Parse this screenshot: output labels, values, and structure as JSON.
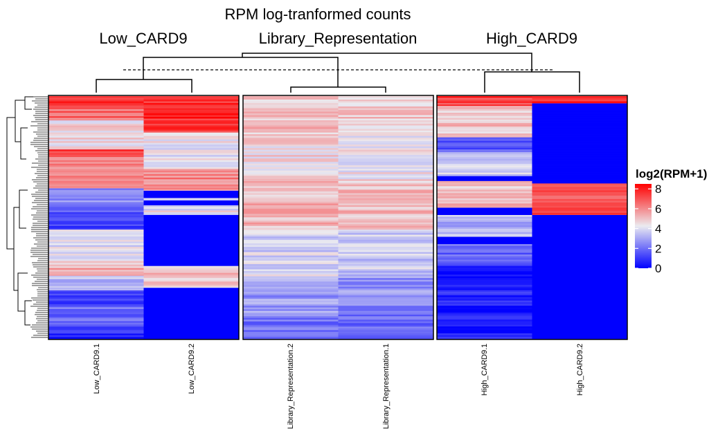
{
  "chart_data": {
    "type": "heatmap",
    "title": "RPM log-tranformed counts",
    "column_groups": [
      {
        "label": "Low_CARD9",
        "columns": [
          "Low_CARD9.1",
          "Low_CARD9.2"
        ]
      },
      {
        "label": "Library_Representation",
        "columns": [
          "Library_Representation.2",
          "Library_Representation.1"
        ]
      },
      {
        "label": "High_CARD9",
        "columns": [
          "High_CARD9.1",
          "High_CARD9.2"
        ]
      }
    ],
    "legend": {
      "title": "log2(RPM+1)",
      "ticks": [
        0,
        2,
        4,
        6,
        8
      ],
      "range": [
        0,
        8.5
      ],
      "colors": {
        "low": "#0000ff",
        "mid": "#ebebf0",
        "high": "#ff0000"
      }
    },
    "row_dendrogram": true,
    "column_dendrogram": true,
    "segments": {
      "Low_CARD9.1": [
        [
          0.0,
          0.04,
          7.4
        ],
        [
          0.04,
          0.1,
          6.5
        ],
        [
          0.1,
          0.22,
          4.6
        ],
        [
          0.22,
          0.24,
          2.4
        ],
        [
          0.22,
          0.25,
          7.6
        ],
        [
          0.25,
          0.38,
          6.0
        ],
        [
          0.38,
          0.45,
          2.7
        ],
        [
          0.45,
          0.55,
          1.4
        ],
        [
          0.55,
          0.68,
          4.1
        ],
        [
          0.68,
          0.74,
          5.3
        ],
        [
          0.74,
          0.8,
          3.2
        ],
        [
          0.8,
          0.87,
          0.9
        ],
        [
          0.87,
          0.95,
          2.0
        ],
        [
          0.95,
          1.0,
          0.7
        ]
      ],
      "Low_CARD9.2": [
        [
          0.0,
          0.15,
          7.7
        ],
        [
          0.15,
          0.3,
          4.3
        ],
        [
          0.3,
          0.39,
          6.0
        ],
        [
          0.39,
          0.42,
          0.0
        ],
        [
          0.42,
          0.43,
          4.6
        ],
        [
          0.43,
          0.45,
          0.0
        ],
        [
          0.45,
          0.49,
          4.2
        ],
        [
          0.49,
          0.7,
          0.0
        ],
        [
          0.7,
          0.79,
          4.9
        ],
        [
          0.79,
          1.0,
          0.0
        ]
      ],
      "Library_Representation.2": [
        [
          0.0,
          0.15,
          5.0
        ],
        [
          0.15,
          0.35,
          4.6
        ],
        [
          0.35,
          0.55,
          5.2
        ],
        [
          0.55,
          0.75,
          3.9
        ],
        [
          0.75,
          0.9,
          2.7
        ],
        [
          0.9,
          1.0,
          2.2
        ]
      ],
      "Library_Representation.1": [
        [
          0.0,
          0.15,
          4.8
        ],
        [
          0.15,
          0.35,
          4.4
        ],
        [
          0.35,
          0.55,
          5.0
        ],
        [
          0.55,
          0.75,
          3.7
        ],
        [
          0.75,
          0.9,
          2.6
        ],
        [
          0.9,
          1.0,
          1.8
        ]
      ],
      "High_CARD9.1": [
        [
          0.0,
          0.04,
          7.4
        ],
        [
          0.04,
          0.17,
          5.0
        ],
        [
          0.17,
          0.23,
          1.8
        ],
        [
          0.23,
          0.33,
          3.7
        ],
        [
          0.33,
          0.35,
          0.0
        ],
        [
          0.35,
          0.46,
          5.1
        ],
        [
          0.46,
          0.49,
          0.0
        ],
        [
          0.49,
          0.58,
          3.3
        ],
        [
          0.58,
          0.61,
          0.0
        ],
        [
          0.61,
          0.7,
          2.0
        ],
        [
          0.7,
          1.0,
          0.6
        ]
      ],
      "High_CARD9.2": [
        [
          0.0,
          0.03,
          7.9
        ],
        [
          0.03,
          0.36,
          0.0
        ],
        [
          0.36,
          0.49,
          7.2
        ],
        [
          0.49,
          1.0,
          0.0
        ]
      ]
    }
  }
}
